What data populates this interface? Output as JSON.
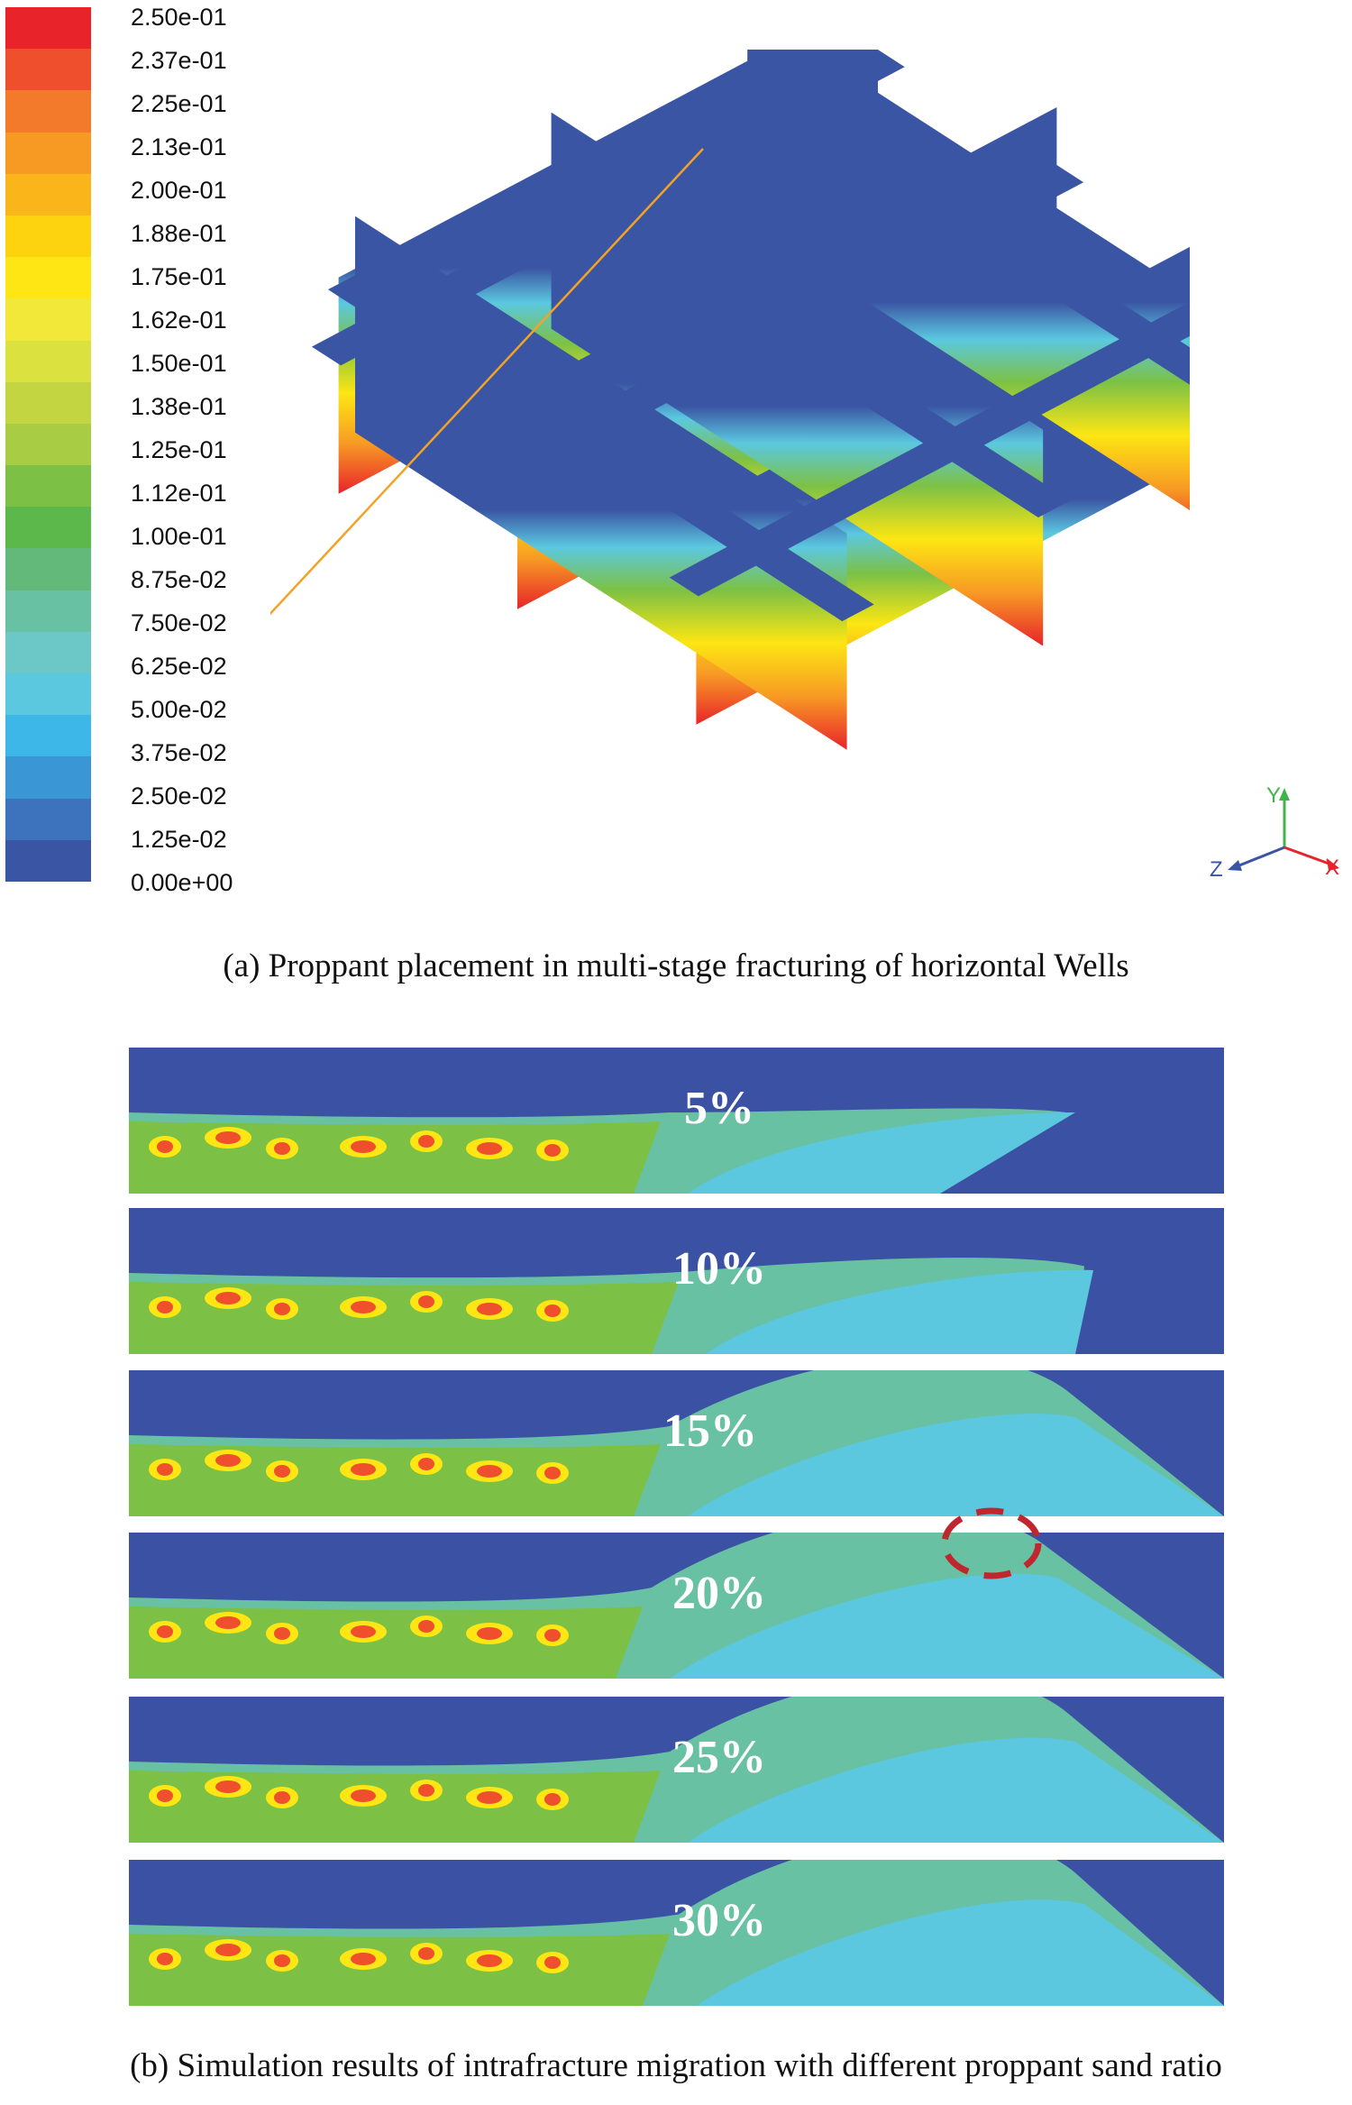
{
  "legend": {
    "ticks": [
      "2.50e-01",
      "2.37e-01",
      "2.25e-01",
      "2.13e-01",
      "2.00e-01",
      "1.88e-01",
      "1.75e-01",
      "1.62e-01",
      "1.50e-01",
      "1.38e-01",
      "1.25e-01",
      "1.12e-01",
      "1.00e-01",
      "8.75e-02",
      "7.50e-02",
      "6.25e-02",
      "5.00e-02",
      "3.75e-02",
      "2.50e-02",
      "1.25e-02",
      "0.00e+00"
    ],
    "colors": [
      "#e8232a",
      "#ef4f2d",
      "#f37a2b",
      "#f79a24",
      "#fab51a",
      "#fdd20e",
      "#fde613",
      "#f2e83a",
      "#dbe13f",
      "#c3d641",
      "#a8cc43",
      "#7cc145",
      "#5cb84a",
      "#63b97a",
      "#69c1a3",
      "#6bc8c6",
      "#5bc8e0",
      "#3cb7e8",
      "#3a96d5",
      "#3d73bd",
      "#3a55a3"
    ]
  },
  "axes": {
    "y": "Y",
    "z": "Z",
    "x": "X"
  },
  "captions": {
    "a": "(a) Proppant placement in multi-stage fracturing of horizontal Wells",
    "b": "(b) Simulation results of intrafracture migration with different proppant sand ratio"
  },
  "panels": [
    {
      "label": "5%"
    },
    {
      "label": "10%"
    },
    {
      "label": "15%"
    },
    {
      "label": "20%"
    },
    {
      "label": "25%"
    },
    {
      "label": "30%"
    }
  ]
}
